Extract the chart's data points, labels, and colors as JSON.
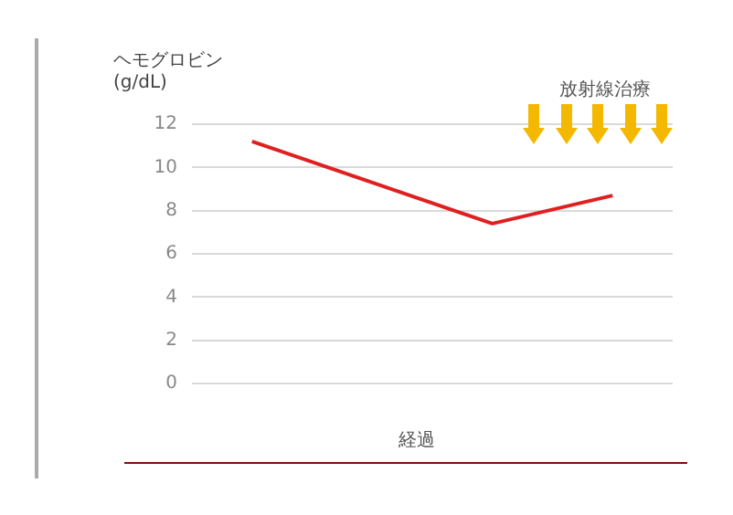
{
  "chart_data": {
    "type": "line",
    "ylabel": "ヘモグロビン\n(g/dL)",
    "xlabel": "経過",
    "categories": [
      null,
      null,
      null,
      null
    ],
    "series": [
      {
        "color": "#e02020",
        "values": [
          11.2,
          9.3,
          7.4,
          8.7
        ]
      }
    ],
    "ylim": [
      0,
      12
    ],
    "yticks": [
      0,
      2,
      4,
      6,
      8,
      10,
      12
    ],
    "grid": "y",
    "legend": false,
    "marker": "none",
    "line_style": "solid",
    "tick_labels": "y",
    "annotations": [
      "放射線治療"
    ]
  }
}
